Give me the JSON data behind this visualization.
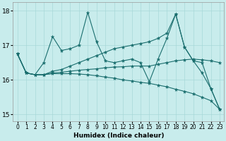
{
  "xlabel": "Humidex (Indice chaleur)",
  "xlim": [
    -0.5,
    23.5
  ],
  "ylim": [
    14.8,
    18.25
  ],
  "yticks": [
    15,
    16,
    17,
    18
  ],
  "xticks": [
    0,
    1,
    2,
    3,
    4,
    5,
    6,
    7,
    8,
    9,
    10,
    11,
    12,
    13,
    14,
    15,
    16,
    17,
    18,
    19,
    20,
    21,
    22,
    23
  ],
  "bg_color": "#c8ecec",
  "line_color": "#1a6e6e",
  "grid_color": "#a8d8d8",
  "lines": [
    [
      16.75,
      16.2,
      16.15,
      16.5,
      17.25,
      16.85,
      16.9,
      17.0,
      17.95,
      17.1,
      16.55,
      16.5,
      16.55,
      16.6,
      16.5,
      15.95,
      16.6,
      17.2,
      17.9,
      16.95,
      16.55,
      16.2,
      15.75,
      15.15
    ],
    [
      16.75,
      16.2,
      16.15,
      16.15,
      16.25,
      16.3,
      16.4,
      16.5,
      16.6,
      16.7,
      16.8,
      16.9,
      16.95,
      17.0,
      17.05,
      17.1,
      17.2,
      17.35,
      17.9,
      16.95,
      16.55,
      16.5,
      15.75,
      15.15
    ],
    [
      16.75,
      16.2,
      16.15,
      16.15,
      16.18,
      16.18,
      16.18,
      16.17,
      16.15,
      16.12,
      16.08,
      16.05,
      16.0,
      15.97,
      15.93,
      15.9,
      15.85,
      15.8,
      15.73,
      15.67,
      15.6,
      15.5,
      15.4,
      15.15
    ],
    [
      16.75,
      16.2,
      16.15,
      16.15,
      16.2,
      16.22,
      16.25,
      16.28,
      16.3,
      16.32,
      16.35,
      16.37,
      16.38,
      16.4,
      16.4,
      16.4,
      16.45,
      16.5,
      16.55,
      16.58,
      16.6,
      16.58,
      16.55,
      16.5
    ]
  ]
}
